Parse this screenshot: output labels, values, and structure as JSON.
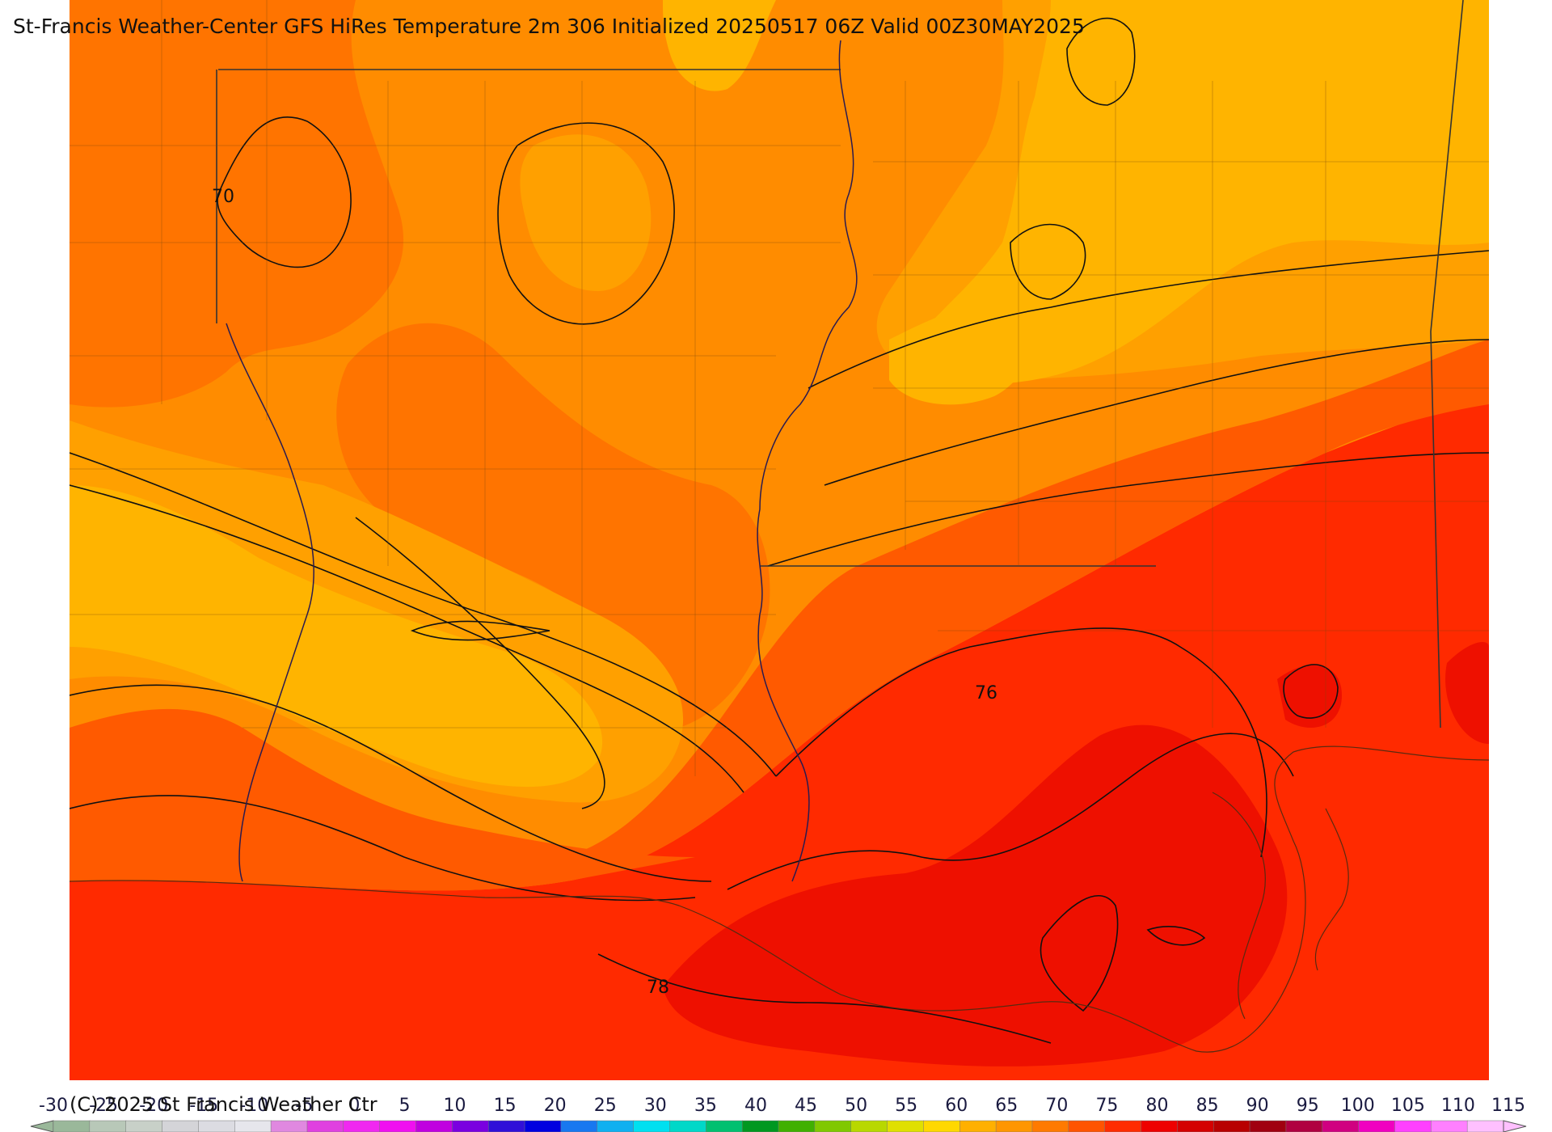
{
  "title": "St-Francis Weather-Center GFS HiRes Temperature 2m  306 Initialized 20250517 06Z Valid 00Z30MAY2025",
  "copyright": "(C) 2025 St Francis Weather Ctr",
  "contour_labels": [
    "70",
    "76",
    "78"
  ],
  "colorbar": {
    "min": -30,
    "max": 115,
    "step": 5,
    "tick_labels": [
      "-30",
      "-25",
      "-20",
      "-15",
      "-10",
      "-5",
      "0",
      "5",
      "10",
      "15",
      "20",
      "25",
      "30",
      "35",
      "40",
      "45",
      "50",
      "55",
      "60",
      "65",
      "70",
      "75",
      "80",
      "85",
      "90",
      "95",
      "100",
      "105",
      "110",
      "115"
    ],
    "colors": [
      "#9ab89a",
      "#b8c8b8",
      "#c8d0c8",
      "#d4d4d8",
      "#dcdce2",
      "#e6e6ec",
      "#e088e0",
      "#e040e0",
      "#f028f0",
      "#f010f0",
      "#c000e0",
      "#7a00e0",
      "#3010d8",
      "#0000e0",
      "#1878f0",
      "#10b0f0",
      "#00e0f0",
      "#00d8c8",
      "#00c070",
      "#009820",
      "#40b000",
      "#80c800",
      "#b8d800",
      "#e0e000",
      "#ffd800",
      "#ffb000",
      "#ff9600",
      "#ff7a00",
      "#ff5400",
      "#ff2c00",
      "#ee0000",
      "#d40000",
      "#b80000",
      "#a00010",
      "#b00040",
      "#d00080",
      "#f000c0",
      "#ff40ff",
      "#ff80ff",
      "#ffc0ff"
    ]
  },
  "field_colors": {
    "t60_65": "#ffb400",
    "t65_70": "#ffa000",
    "t70_72": "#ff8c00",
    "t72_74": "#ff7400",
    "t74_76": "#ff5a00",
    "t76_78": "#ff2a00",
    "t78_80": "#ee1000"
  }
}
